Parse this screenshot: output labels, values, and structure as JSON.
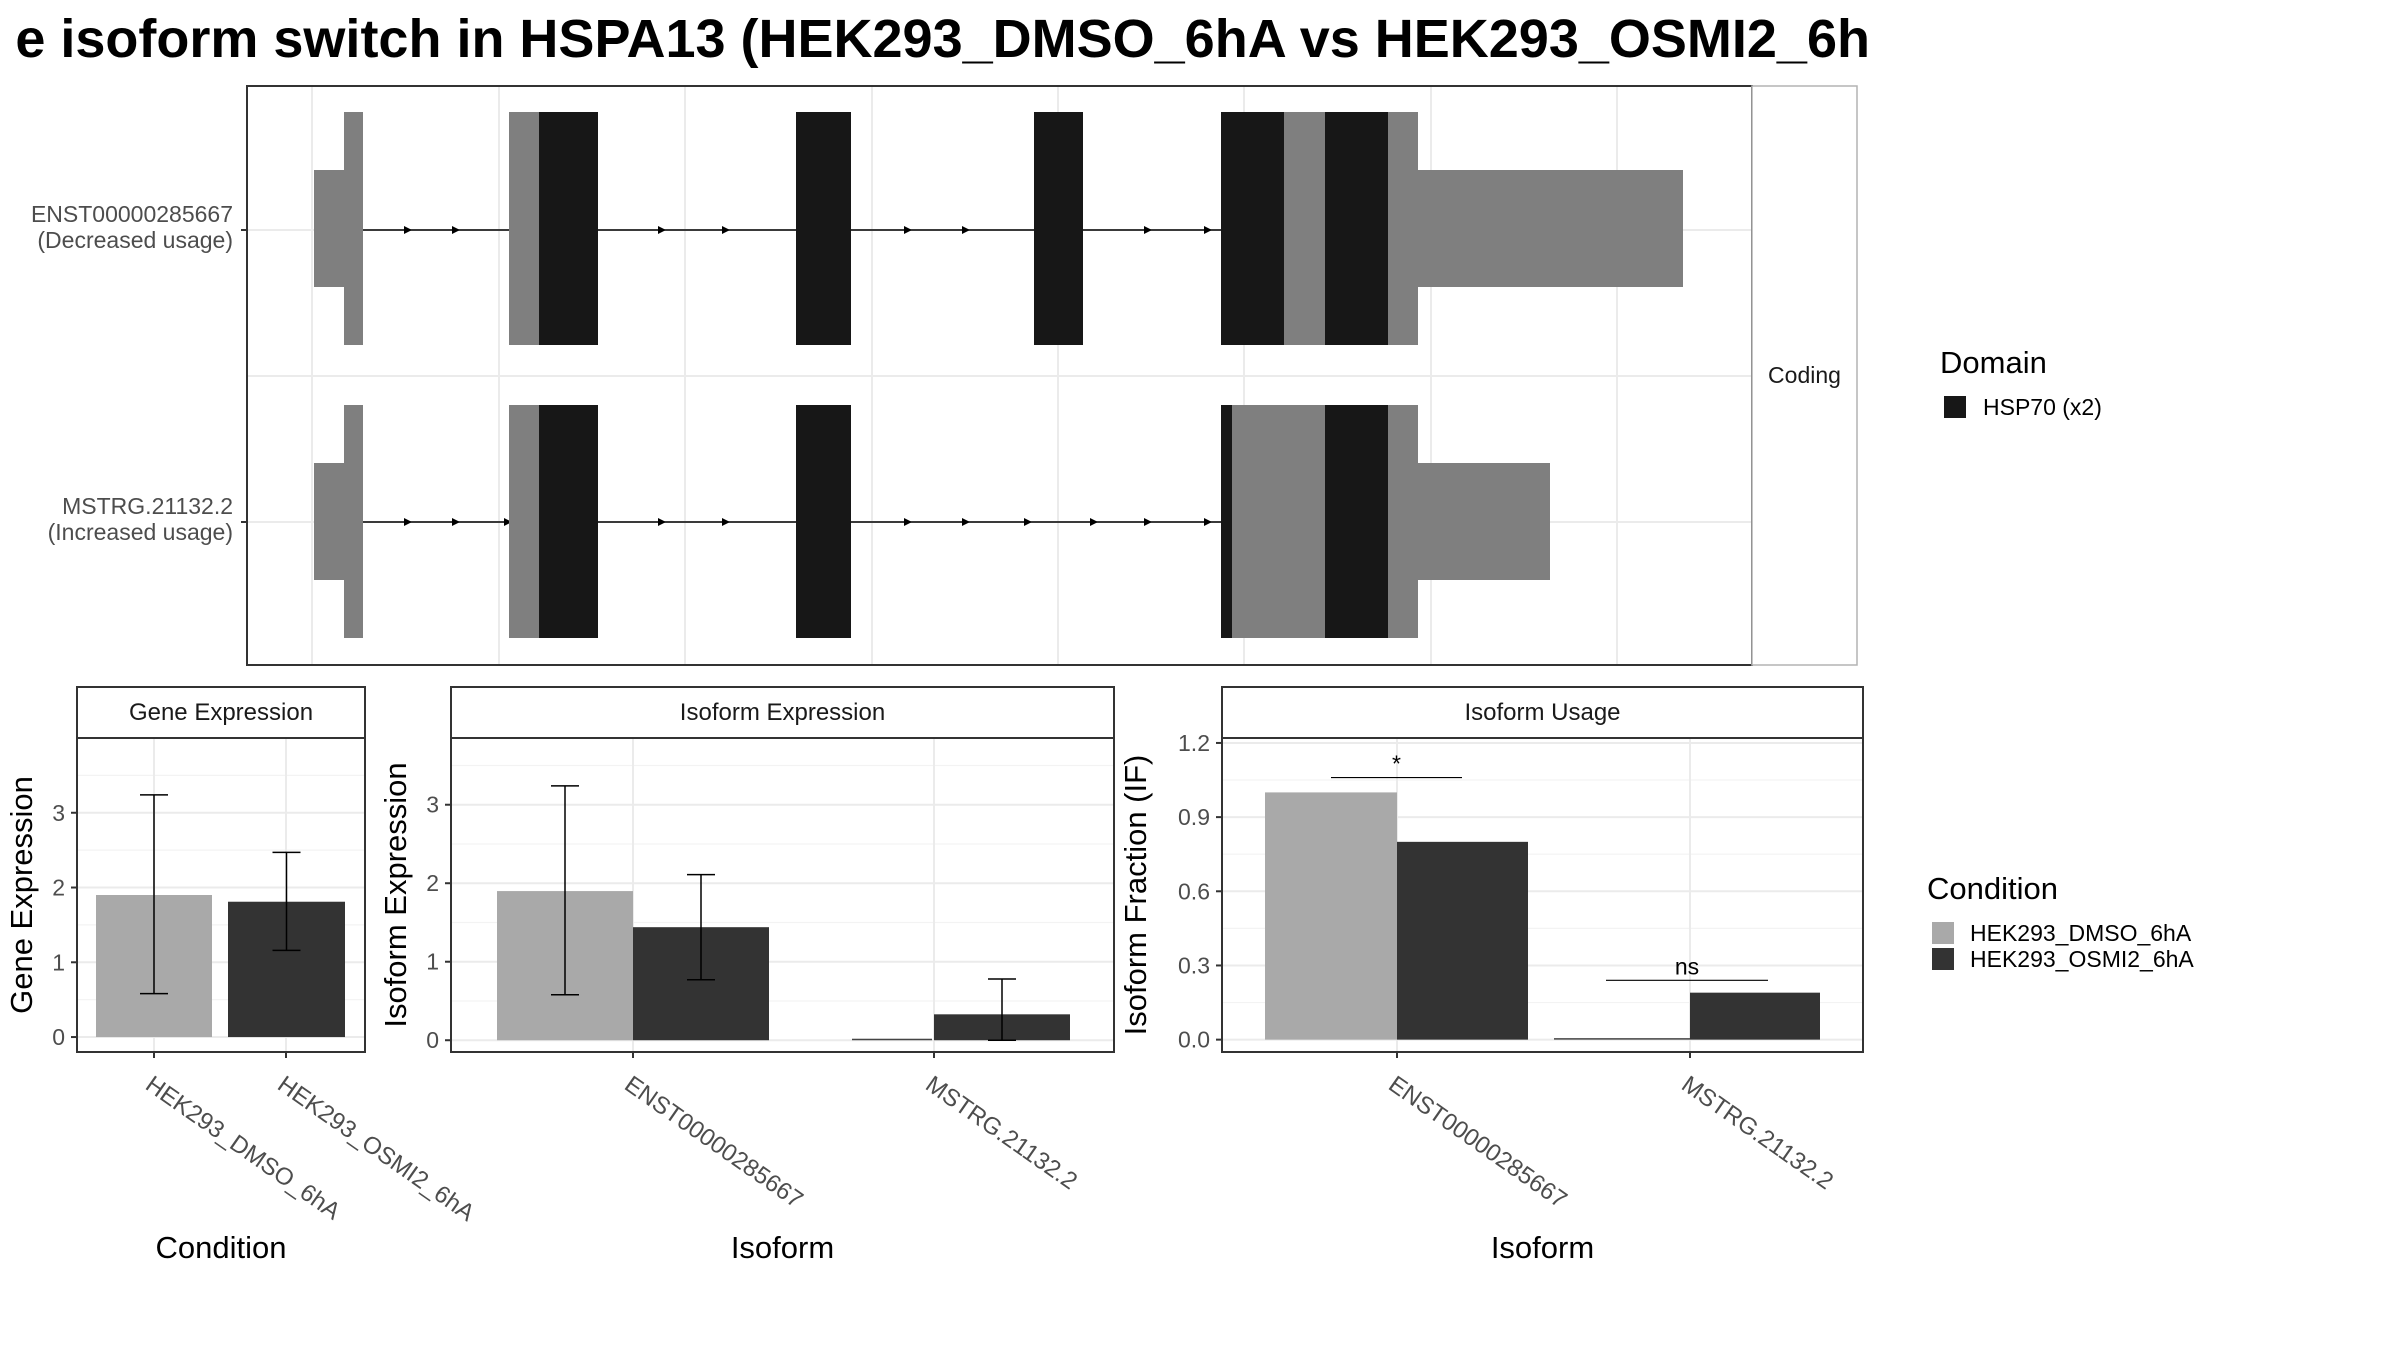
{
  "title": "e isoform switch in HSPA13 (HEK293_DMSO_6hA vs HEK293_OSMI2_6h",
  "colors": {
    "domain": "#171717",
    "utr": "#7f7f7f",
    "dmso": "#a9a9a9",
    "osmi": "#333333",
    "grid": "#ebebeb",
    "intron": "#000000"
  },
  "transcript_panel": {
    "facet_label": "Coding",
    "isoforms": [
      {
        "id": "ENST00000285667",
        "usage": "(Decreased usage)"
      },
      {
        "id": "MSTRG.21132.2",
        "usage": "(Increased usage)"
      }
    ]
  },
  "legends": {
    "domain": {
      "title": "Domain",
      "items": [
        {
          "label": "HSP70 (x2)",
          "color": "#171717"
        }
      ]
    },
    "condition": {
      "title": "Condition",
      "items": [
        {
          "label": "HEK293_DMSO_6hA",
          "color": "#a9a9a9"
        },
        {
          "label": "HEK293_OSMI2_6hA",
          "color": "#333333"
        }
      ]
    }
  },
  "chart_data": [
    {
      "type": "bar",
      "panel": "Gene Expression",
      "xlabel": "Condition",
      "ylabel": "Gene Expression",
      "categories": [
        "HEK293_DMSO_6hA",
        "HEK293_OSMI2_6hA"
      ],
      "values": [
        1.9,
        1.81
      ],
      "error_low": [
        0.58,
        1.16
      ],
      "error_high": [
        3.24,
        2.47
      ],
      "yticks": [
        0,
        1,
        2,
        3
      ],
      "ylim": [
        -0.2,
        4.0
      ],
      "grid": true
    },
    {
      "type": "bar",
      "panel": "Isoform Expression",
      "xlabel": "Isoform",
      "ylabel": "Isoform Expression",
      "categories": [
        "ENST00000285667",
        "MSTRG.21132.2"
      ],
      "series": [
        {
          "name": "HEK293_DMSO_6hA",
          "values": [
            1.9,
            0.0
          ],
          "error_low": [
            0.58,
            0.0
          ],
          "error_high": [
            3.24,
            0.0
          ]
        },
        {
          "name": "HEK293_OSMI2_6hA",
          "values": [
            1.44,
            0.33
          ],
          "error_low": [
            0.77,
            0.0
          ],
          "error_high": [
            2.11,
            0.78
          ]
        }
      ],
      "yticks": [
        0,
        1,
        2,
        3
      ],
      "ylim": [
        -0.15,
        3.85
      ],
      "grid": true
    },
    {
      "type": "bar",
      "panel": "Isoform Usage",
      "xlabel": "Isoform",
      "ylabel": "Isoform Fraction (IF)",
      "categories": [
        "ENST00000285667",
        "MSTRG.21132.2"
      ],
      "series": [
        {
          "name": "HEK293_DMSO_6hA",
          "values": [
            1.0,
            0.0
          ]
        },
        {
          "name": "HEK293_OSMI2_6hA",
          "values": [
            0.8,
            0.19
          ]
        }
      ],
      "significance": [
        {
          "category": "ENST00000285667",
          "label": "*",
          "y": 1.06
        },
        {
          "category": "MSTRG.21132.2",
          "label": "ns",
          "y": 0.24
        }
      ],
      "yticks": [
        0.0,
        0.3,
        0.6,
        0.9,
        1.2
      ],
      "ytick_labels": [
        "0.0",
        "0.3",
        "0.6",
        "0.9",
        "1.2"
      ],
      "ylim": [
        -0.05,
        1.22
      ],
      "grid": true
    }
  ]
}
